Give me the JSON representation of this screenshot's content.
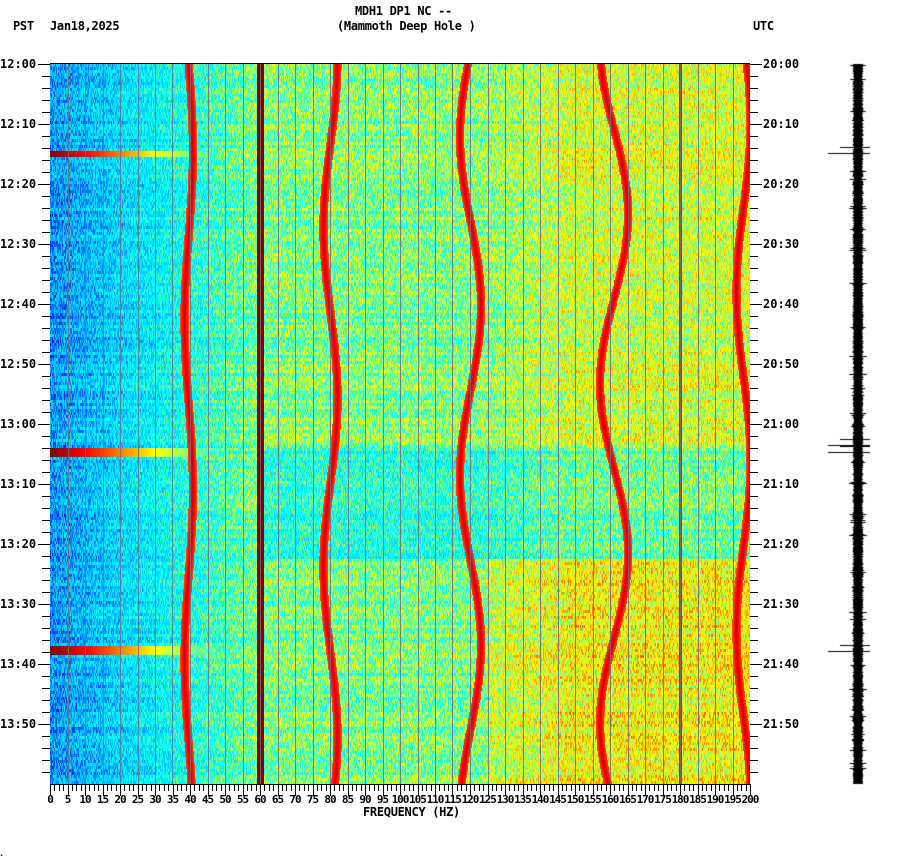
{
  "header": {
    "station": "MDH1 DP1 NC --",
    "location": "(Mammoth Deep Hole )",
    "left_tz": "PST",
    "date": "Jan18,2025",
    "right_tz": "UTC"
  },
  "footer": {
    "xlabel": "FREQUENCY (HZ)",
    "corner_mark": "⸼"
  },
  "chart_data": {
    "type": "heatmap",
    "title": "MDH1 DP1 NC -- (Mammoth Deep Hole ) spectrogram",
    "xlabel": "FREQUENCY (HZ)",
    "ylabel_left": "PST",
    "ylabel_right": "UTC",
    "date": "Jan18,2025",
    "xlim": [
      0,
      200
    ],
    "x_ticks": [
      0,
      5,
      10,
      15,
      20,
      25,
      30,
      35,
      40,
      45,
      50,
      55,
      60,
      65,
      70,
      75,
      80,
      85,
      90,
      95,
      100,
      105,
      110,
      115,
      120,
      125,
      130,
      135,
      140,
      145,
      150,
      155,
      160,
      165,
      170,
      175,
      180,
      185,
      190,
      195,
      200
    ],
    "y_ticks_left": [
      "12:00",
      "12:10",
      "12:20",
      "12:30",
      "12:40",
      "12:50",
      "13:00",
      "13:10",
      "13:20",
      "13:30",
      "13:40",
      "13:50"
    ],
    "y_ticks_right": [
      "20:00",
      "20:10",
      "20:20",
      "20:30",
      "20:40",
      "20:50",
      "21:00",
      "21:10",
      "21:20",
      "21:30",
      "21:40",
      "21:50"
    ],
    "time_range_minutes": 120,
    "minor_tick_minutes": 2,
    "grid": "vertical lines every 5 Hz",
    "colormap": [
      "#0000b0",
      "#0060ff",
      "#00c8ff",
      "#00ffff",
      "#80ff80",
      "#ffff00",
      "#ff8000",
      "#ff0000",
      "#800000"
    ],
    "features": {
      "steady_lines_hz": [
        60,
        180
      ],
      "wandering_lines": [
        {
          "name": "~40 Hz",
          "center_hz": 39.5,
          "amplitude_hz": 1.2
        },
        {
          "name": "~80 Hz",
          "center_hz": 80,
          "amplitude_hz": 2
        },
        {
          "name": "~120 Hz",
          "center_hz": 120,
          "amplitude_hz": 3
        },
        {
          "name": "~160 Hz",
          "center_hz": 161,
          "amplitude_hz": 4
        },
        {
          "name": "~198 Hz",
          "center_hz": 198,
          "amplitude_hz": 2
        }
      ],
      "broadband_events_minutes": [
        14.7,
        64.5,
        97.5
      ],
      "chirp_period_minutes": 7.5,
      "noise_quieter_band_minutes": [
        64,
        82
      ]
    },
    "seismogram_spikes_y_minutes": [
      14.8,
      63.5,
      64.6,
      97.8
    ]
  }
}
